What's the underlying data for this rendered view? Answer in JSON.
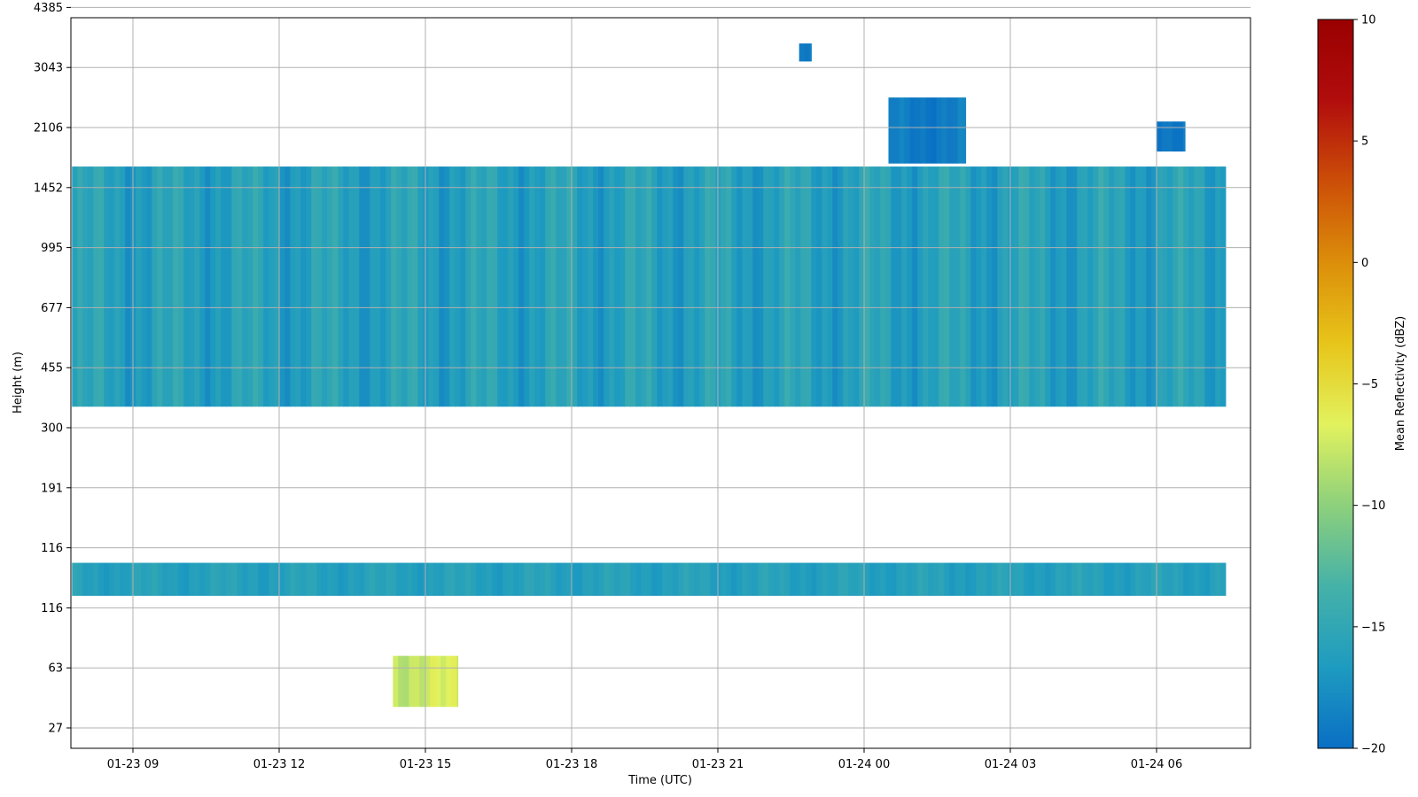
{
  "chart_data": {
    "type": "heatmap",
    "title": "",
    "xlabel": "Time (UTC)",
    "ylabel": "Height (m)",
    "x_ticks": [
      "01-23 09",
      "01-23 12",
      "01-23 15",
      "01-23 18",
      "01-23 21",
      "01-24 00",
      "01-24 03",
      "01-24 06"
    ],
    "y_ticks": [
      "27",
      "63",
      "116",
      "116",
      "191",
      "300",
      "455",
      "677",
      "995",
      "1452",
      "2106",
      "3043",
      "4385"
    ],
    "grid": true,
    "colorbar": {
      "label": "Mean Reflectivity (dBZ)",
      "ticks": [
        "10",
        "5",
        "0",
        "−5",
        "−10",
        "−15",
        "−20"
      ],
      "range": [
        -20,
        10
      ],
      "colormap": [
        "#0a6fc4",
        "#1e9bc0",
        "#45b2a8",
        "#8dd07c",
        "#e2f25e",
        "#e7c51a",
        "#dc8e0a",
        "#cc4e08",
        "#b10d0d",
        "#9a0000"
      ]
    },
    "regions": [
      {
        "name": "main layer",
        "time": [
          "01-23 07:45",
          "01-24 07:25"
        ],
        "height_levels": [
          5.35,
          9.35
        ],
        "dbz_range": [
          -18,
          -14
        ]
      },
      {
        "name": "lower layer",
        "time": [
          "01-23 07:45",
          "01-24 07:25"
        ],
        "height_levels": [
          2.2,
          2.75
        ],
        "dbz_range": [
          -17,
          -15
        ]
      },
      {
        "name": "near-surface echo",
        "time": [
          "01-23 14:20",
          "01-23 15:40"
        ],
        "height_levels": [
          0.35,
          1.2
        ],
        "dbz_range": [
          -9,
          -6
        ]
      },
      {
        "name": "cloud 01-23 22:40",
        "time": [
          "01-23 22:40",
          "01-23 22:55"
        ],
        "height_levels": [
          11.1,
          11.4
        ],
        "dbz_range": [
          -20,
          -18
        ]
      },
      {
        "name": "cloud 01-24 00:30",
        "time": [
          "01-24 00:30",
          "01-24 02:05"
        ],
        "height_levels": [
          9.4,
          10.5
        ],
        "dbz_range": [
          -20,
          -18
        ]
      },
      {
        "name": "cloud 01-24 06:00",
        "time": [
          "01-24 06:00",
          "01-24 06:35"
        ],
        "height_levels": [
          9.6,
          10.1
        ],
        "dbz_range": [
          -20,
          -18
        ]
      }
    ]
  }
}
